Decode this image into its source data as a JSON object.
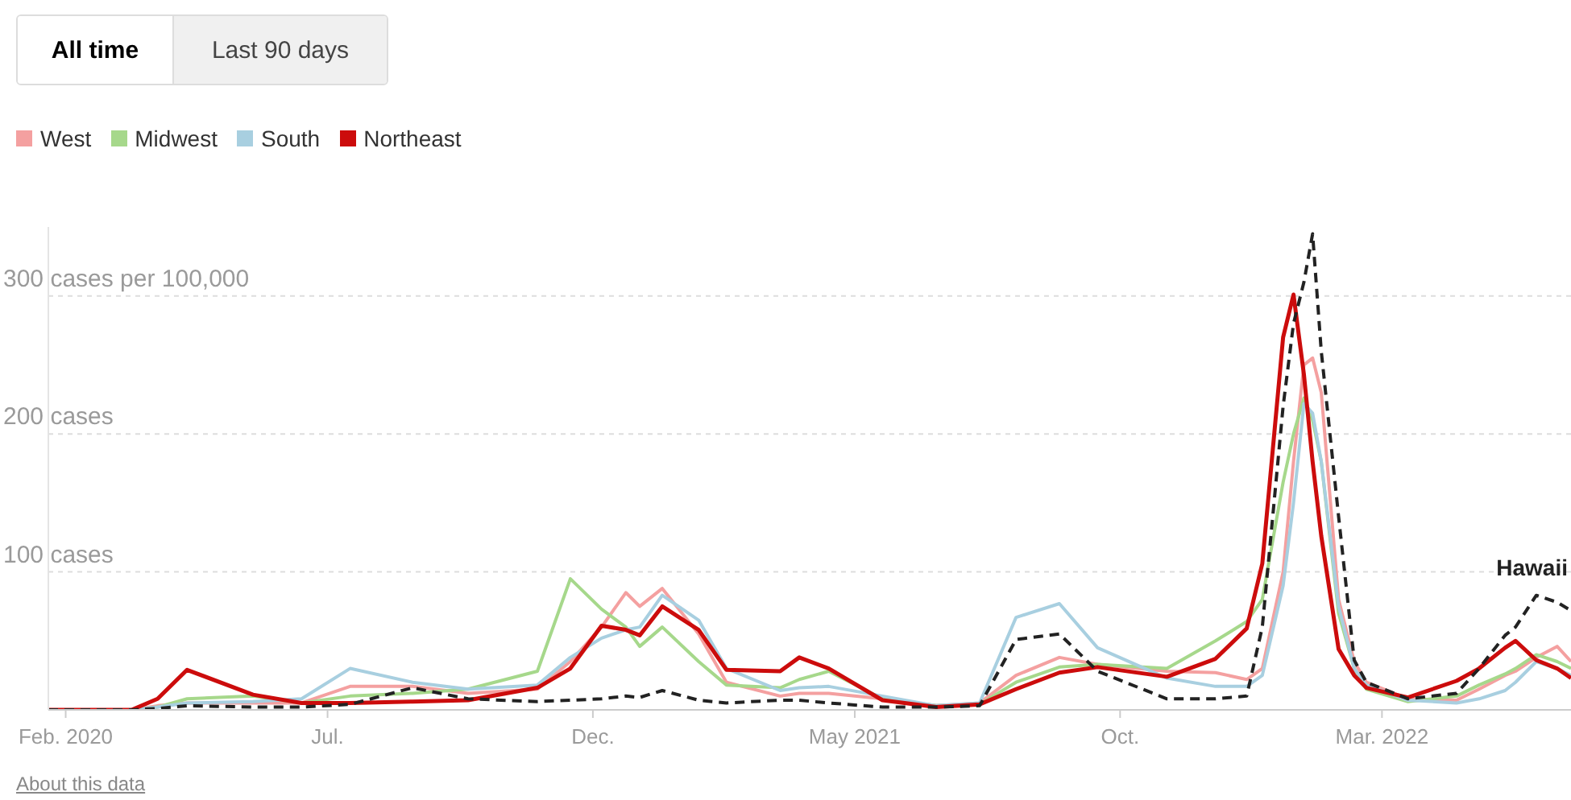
{
  "chart_data": {
    "type": "line",
    "annotations": [
      "All time",
      "Last 90 days",
      "About this data"
    ],
    "x": [
      "2020-01-22",
      "2020-03-10",
      "2020-03-25",
      "2020-04-11",
      "2020-05-19",
      "2020-06-16",
      "2020-07-14",
      "2020-08-19",
      "2020-09-20",
      "2020-10-30",
      "2020-11-18",
      "2020-12-06",
      "2020-12-20",
      "2020-12-28",
      "2021-01-10",
      "2021-01-31",
      "2021-02-16",
      "2021-03-19",
      "2021-03-30",
      "2021-04-16",
      "2021-05-17",
      "2021-06-17",
      "2021-07-12",
      "2021-08-02",
      "2021-08-27",
      "2021-09-18",
      "2021-10-28",
      "2021-11-25",
      "2021-12-13",
      "2021-12-22",
      "2022-01-03",
      "2022-01-09",
      "2022-01-15",
      "2022-01-20",
      "2022-01-25",
      "2022-02-04",
      "2022-02-13",
      "2022-02-20",
      "2022-03-16",
      "2022-04-13",
      "2022-04-26",
      "2022-05-11",
      "2022-05-17",
      "2022-05-29",
      "2022-06-10",
      "2022-06-18"
    ],
    "series": [
      {
        "name": "West",
        "color": "#f4a0a0",
        "values": [
          0,
          0,
          3,
          5,
          5,
          5,
          17,
          17,
          12,
          15,
          35,
          60,
          85,
          75,
          88,
          55,
          20,
          10,
          12,
          12,
          8,
          3,
          5,
          25,
          38,
          33,
          28,
          27,
          22,
          30,
          100,
          180,
          250,
          255,
          230,
          80,
          35,
          20,
          8,
          7,
          15,
          25,
          28,
          38,
          46,
          35
        ]
      },
      {
        "name": "Midwest",
        "color": "#a6d88b",
        "values": [
          0,
          0,
          2,
          8,
          10,
          5,
          10,
          12,
          15,
          28,
          95,
          73,
          60,
          46,
          60,
          35,
          18,
          16,
          22,
          28,
          8,
          3,
          4,
          20,
          31,
          33,
          30,
          50,
          64,
          80,
          165,
          200,
          226,
          210,
          180,
          70,
          30,
          15,
          6,
          10,
          18,
          26,
          30,
          40,
          35,
          30
        ]
      },
      {
        "name": "South",
        "color": "#a8cfe0",
        "values": [
          0,
          0,
          2,
          5,
          6,
          8,
          30,
          20,
          15,
          18,
          38,
          52,
          58,
          60,
          83,
          65,
          30,
          14,
          16,
          17,
          10,
          3,
          5,
          67,
          77,
          45,
          23,
          17,
          17,
          25,
          90,
          150,
          222,
          215,
          180,
          75,
          30,
          18,
          7,
          5,
          8,
          14,
          20,
          35,
          30,
          25
        ]
      },
      {
        "name": "Northeast",
        "color": "#cc0c0c",
        "values": [
          0,
          0,
          8,
          29,
          11,
          5,
          5,
          6,
          7,
          16,
          30,
          61,
          58,
          54,
          75,
          58,
          29,
          28,
          38,
          30,
          7,
          2,
          4,
          15,
          27,
          31,
          24,
          37,
          59,
          106,
          270,
          301,
          243,
          180,
          126,
          44,
          25,
          16,
          9,
          21,
          30,
          45,
          50,
          36,
          30,
          23
        ]
      },
      {
        "name": "Hawaii",
        "color": "#222222",
        "line_style": "dashed",
        "values": [
          0,
          0,
          1,
          3,
          2,
          2,
          4,
          16,
          8,
          6,
          7,
          8,
          10,
          9,
          14,
          7,
          5,
          7,
          7,
          5,
          2,
          2,
          3,
          51,
          55,
          28,
          8,
          8,
          10,
          60,
          220,
          280,
          310,
          345,
          260,
          140,
          36,
          20,
          8,
          12,
          30,
          54,
          60,
          83,
          78,
          72
        ]
      }
    ],
    "xlim": [
      "2020-01-22",
      "2022-06-18"
    ],
    "xticks": [
      {
        "value": "2020-02-01",
        "label": "Feb. 2020"
      },
      {
        "value": "2020-07-01",
        "label": "Jul."
      },
      {
        "value": "2020-12-01",
        "label": "Dec."
      },
      {
        "value": "2021-05-01",
        "label": "May 2021"
      },
      {
        "value": "2021-10-01",
        "label": "Oct."
      },
      {
        "value": "2022-03-01",
        "label": "Mar. 2022"
      }
    ],
    "ylim": [
      0,
      350
    ],
    "yticks": [
      {
        "value": 100,
        "label": "100 cases"
      },
      {
        "value": 200,
        "label": "200 cases"
      },
      {
        "value": 300,
        "label": "300 cases per 100,000"
      }
    ],
    "grid": "y",
    "legend": "top left",
    "marker": "none",
    "line_style": "solid"
  }
}
